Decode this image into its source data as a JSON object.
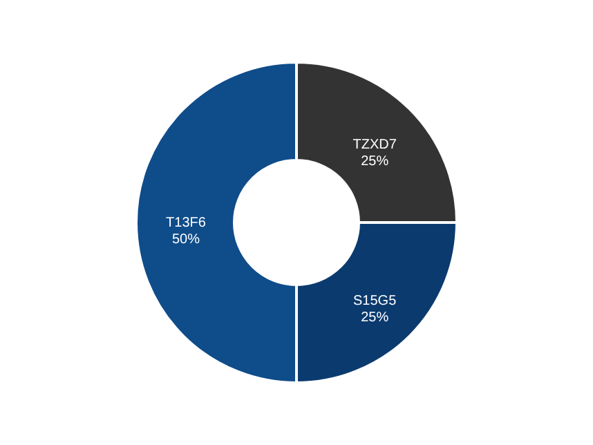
{
  "chart_data": {
    "type": "donut",
    "categories": [
      "TZXD7",
      "S15G5",
      "T13F6"
    ],
    "values": [
      25,
      25,
      50
    ],
    "colors": [
      "#333333",
      "#0b3a6e",
      "#0f4c8a"
    ],
    "value_labels": [
      "25%",
      "25%",
      "50%"
    ]
  }
}
